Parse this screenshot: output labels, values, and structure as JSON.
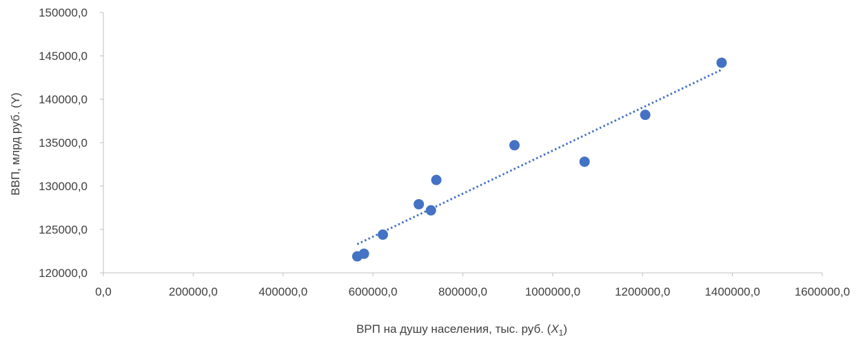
{
  "chart_data": {
    "type": "scatter",
    "title": "",
    "xlabel_main": "ВРП на душу населения, тыс. руб. (",
    "xlabel_var": "X",
    "xlabel_sub": "1",
    "xlabel_end": ")",
    "ylabel": "ВВП, млрд  руб. (Y)",
    "xlim": [
      0,
      1600000
    ],
    "ylim": [
      120000,
      150000
    ],
    "x_ticks": [
      0,
      200000,
      400000,
      600000,
      800000,
      1000000,
      1200000,
      1400000,
      1600000
    ],
    "y_ticks": [
      120000,
      125000,
      130000,
      135000,
      140000,
      145000,
      150000
    ],
    "x_tick_labels": [
      "0,0",
      "200000,0",
      "400000,0",
      "600000,0",
      "800000,0",
      "1000000,0",
      "1200000,0",
      "1400000,0",
      "1600000,0"
    ],
    "y_tick_labels": [
      "120000,0",
      "125000,0",
      "130000,0",
      "135000,0",
      "140000,0",
      "145000,0",
      "150000,0"
    ],
    "grid": false,
    "legend": "none",
    "series": [
      {
        "color": "#4472c4",
        "x": [
          565000,
          580000,
          622000,
          702000,
          729000,
          741000,
          915000,
          1071000,
          1206000,
          1376000
        ],
        "y": [
          121900,
          122200,
          124400,
          127900,
          127200,
          130700,
          134700,
          132800,
          138200,
          144200
        ]
      }
    ],
    "trendline": {
      "type": "linear",
      "style": "dotted",
      "color": "#4472c4",
      "x_range": [
        565000,
        1376000
      ],
      "y_range": [
        123300,
        143400
      ]
    }
  }
}
